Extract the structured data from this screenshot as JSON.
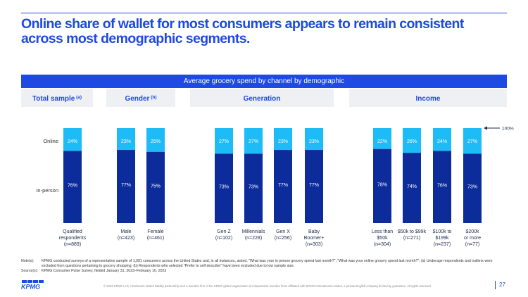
{
  "title": "Online share of wallet for most consumers appears to remain consistent across most demographic segments.",
  "chart_data": {
    "type": "bar",
    "stacked": true,
    "title": "Average grocery spend by channel by demographic",
    "ylim": [
      0,
      100
    ],
    "grid": false,
    "series": [
      {
        "name": "Online",
        "color": "#1ebcf7",
        "values": [
          24,
          23,
          25,
          27,
          27,
          23,
          23,
          22,
          26,
          24,
          27
        ]
      },
      {
        "name": "In-person",
        "color": "#0c2c9c",
        "values": [
          76,
          77,
          75,
          73,
          73,
          77,
          77,
          78,
          74,
          76,
          73
        ]
      }
    ],
    "groups": [
      {
        "label": "Total sample",
        "sup": "(a)",
        "categories": [
          "Qualified respondents (n=889)"
        ]
      },
      {
        "label": "Gender",
        "sup": "(b)",
        "categories": [
          "Male (n=423)",
          "Female (n=461)"
        ]
      },
      {
        "label": "Generation",
        "sup": "",
        "categories": [
          "Gen Z (n=102)",
          "Millennials (n=228)",
          "Gen X (n=256)",
          "Baby Boomer+ (n=303)"
        ]
      },
      {
        "label": "Income",
        "sup": "",
        "categories": [
          "Less than $50k (n=304)",
          "$50k to $99k (n=271)",
          "$100k to $199k (n=237)",
          "$200k or more (n=77)"
        ]
      }
    ],
    "category_lines": [
      [
        "Qualified",
        "respondents",
        "(n=889)"
      ],
      [
        "Male",
        "(n=423)"
      ],
      [
        "Female",
        "(n=461)"
      ],
      [
        "Gen Z",
        "(n=102)"
      ],
      [
        "Millennials",
        "(n=228)"
      ],
      [
        "Gen X",
        "(n=256)"
      ],
      [
        "Baby",
        "Boomer+",
        "(n=303)"
      ],
      [
        "Less than",
        "$50k",
        "(n=304)"
      ],
      [
        "$50k to $99k",
        "(n=271)"
      ],
      [
        "$100k to",
        "$199k",
        "(n=237)"
      ],
      [
        "$200k",
        "or more",
        "(n=77)"
      ]
    ],
    "annotation": "100%"
  },
  "notes": {
    "notes_label": "Note(s):",
    "notes_text": "KPMG conducted surveys of a representative sample of 1,091 consumers across the United States and, in all instances, asked, \"What was your in person grocery spend last month?\"; \"What was your online grocery spend last month?\"; (a) Underage respondents and outliers were excluded from questions pertaining to grocery shopping; (b) Respondents who selected \"Prefer to self describe\" have been excluded due to low sample size.",
    "source_label": "Source(s):",
    "source_text": "KPMG Consumer Pulse Survey, fielded January 31, 2023–February 10, 2023"
  },
  "footer": {
    "logo_text": "KPMG",
    "legal": "© 2023 KPMG LLP, a Delaware limited liability partnership and a member firm of the KPMG global organization of independent member firms affiliated with KPMG International Limited, a private English company limited by guarantee. All rights reserved.",
    "page_number": "27"
  }
}
